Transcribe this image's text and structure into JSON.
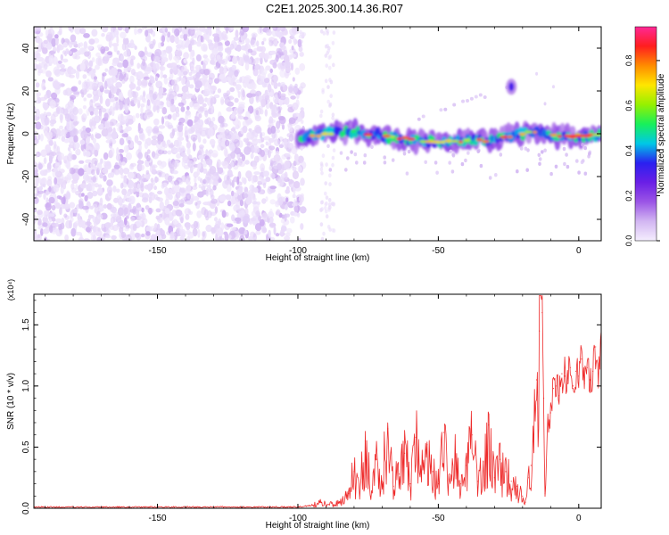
{
  "figure_title": "C2E1.2025.300.14.36.R07",
  "chart_data": [
    {
      "type": "heatmap",
      "title": "C2E1.2025.300.14.36.R07",
      "xlabel": "Height of straight line (km)",
      "ylabel": "Frequency (Hz)",
      "xlim": [
        -194,
        8
      ],
      "ylim": [
        -50,
        50
      ],
      "xticks": [
        -150,
        -100,
        -50,
        0
      ],
      "yticks": [
        -40,
        -20,
        0,
        20,
        40
      ],
      "colorbar": {
        "label": "Normalized spectral amplitude",
        "range": [
          0,
          0.95
        ],
        "ticks": [
          0.0,
          0.2,
          0.4,
          0.6,
          0.8
        ],
        "tick_labels": [
          "0.0",
          "0.2",
          "0.4",
          "0.6",
          "0.8"
        ],
        "colormap": [
          "#f5eefe",
          "#d2b6f2",
          "#9b55e6",
          "#6a1fe6",
          "#2a20f0",
          "#00c8e6",
          "#18f05a",
          "#96f000",
          "#ffe600",
          "#ff8c00",
          "#ff1e1e",
          "#ff2896"
        ]
      },
      "features": {
        "background_noise": {
          "x_range": [
            -194,
            -100
          ],
          "y_range": [
            -50,
            50
          ],
          "amplitude": [
            0.0,
            0.1
          ]
        },
        "main_signal_band": {
          "x": [
            -100,
            -95,
            -90,
            -85,
            -80,
            -75,
            -70,
            -65,
            -60,
            -55,
            -50,
            -45,
            -40,
            -35,
            -30,
            -25,
            -20,
            -15,
            -10,
            -5,
            0,
            5,
            8
          ],
          "center_hz": [
            -2,
            -1,
            0,
            1,
            1,
            0,
            -1,
            -2,
            -3,
            -3,
            -4,
            -4,
            -3,
            -3,
            -3,
            -1,
            0,
            1,
            -1,
            -1,
            -1,
            -1,
            -1
          ],
          "peak_amplitude": 0.9
        },
        "secondary_blob": {
          "x": -24,
          "y_hz": 22,
          "amplitude": 0.3
        },
        "upper_trace": {
          "x_range": [
            -60,
            -24
          ],
          "y_hz_range": [
            6,
            22
          ]
        }
      }
    },
    {
      "type": "line",
      "xlabel": "Height of straight line (km)",
      "ylabel": "SNR (10 * v/v)",
      "scale_label": "(x10⁴)",
      "xlim": [
        -194,
        8
      ],
      "ylim": [
        0,
        1.75
      ],
      "xticks": [
        -150,
        -100,
        -50,
        0
      ],
      "yticks": [
        0.0,
        0.5,
        1.0,
        1.5
      ],
      "ytick_labels": [
        "0.0",
        "0.5",
        "1.0",
        "1.5"
      ],
      "color": "#ee2a2a",
      "series": [
        {
          "name": "SNR",
          "x": [
            -194,
            -180,
            -160,
            -140,
            -120,
            -105,
            -100,
            -96,
            -92,
            -88,
            -85,
            -82,
            -80,
            -78,
            -76,
            -74,
            -72,
            -70,
            -68,
            -66,
            -64,
            -62,
            -60,
            -58,
            -56,
            -54,
            -52,
            -50,
            -48,
            -46,
            -44,
            -42,
            -40,
            -38,
            -36,
            -34,
            -32,
            -30,
            -28,
            -26,
            -24,
            -22,
            -20,
            -19,
            -18,
            -17,
            -16,
            -15,
            -14,
            -13.5,
            -13,
            -12.5,
            -12,
            -11,
            -10,
            -9,
            -8,
            -7,
            -6,
            -5,
            -4,
            -3,
            -2,
            -1,
            0,
            1,
            2,
            3,
            4,
            5,
            6,
            7,
            8
          ],
          "y": [
            0.01,
            0.01,
            0.01,
            0.01,
            0.01,
            0.01,
            0.01,
            0.02,
            0.05,
            0.04,
            0.05,
            0.12,
            0.3,
            0.12,
            0.55,
            0.1,
            0.4,
            0.22,
            0.65,
            0.18,
            0.28,
            0.45,
            0.2,
            0.58,
            0.25,
            0.52,
            0.3,
            0.2,
            0.62,
            0.28,
            0.42,
            0.2,
            0.35,
            0.6,
            0.22,
            0.38,
            0.68,
            0.25,
            0.4,
            0.3,
            0.22,
            0.18,
            0.1,
            0.05,
            0.25,
            0.35,
            0.6,
            1.05,
            1.45,
            1.75,
            1.6,
            0.9,
            0.12,
            0.7,
            0.78,
            0.98,
            1.0,
            0.92,
            1.1,
            1.08,
            1.02,
            1.15,
            1.0,
            1.12,
            1.08,
            1.22,
            1.02,
            1.15,
            1.05,
            1.12,
            1.32,
            1.0,
            1.4
          ]
        }
      ]
    }
  ]
}
